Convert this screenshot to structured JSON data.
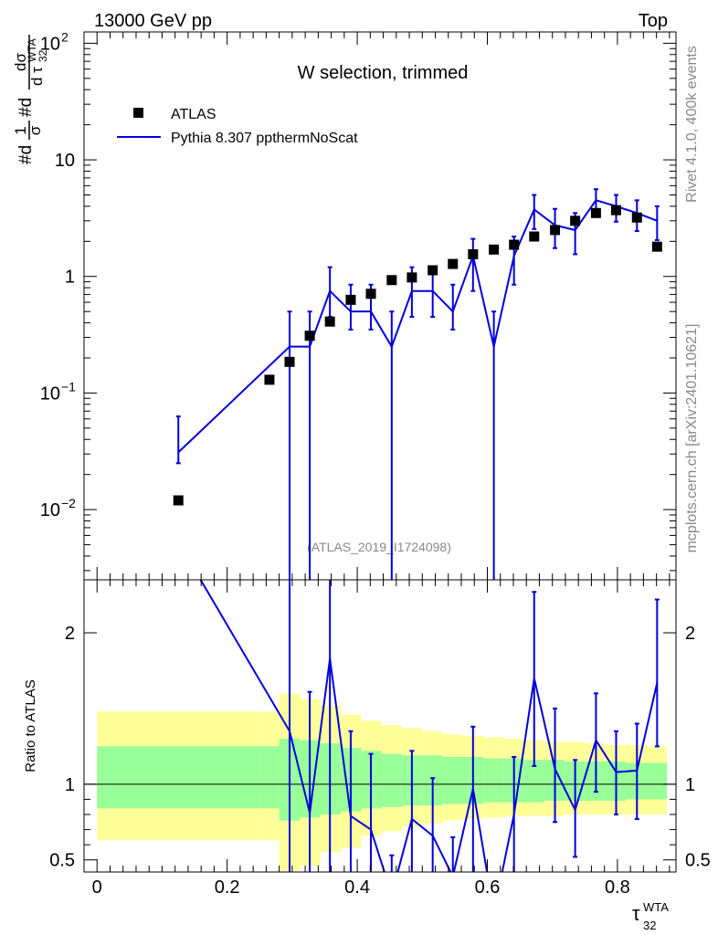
{
  "header": {
    "left": "13000 GeV pp",
    "right": "Top",
    "title": "W selection, trimmed",
    "watermark": "(ATLAS_2019_I1724098)",
    "side_top": "Rivet 4.1.0,  400k events",
    "side_bottom": "mcplots.cern.ch [arXiv:2401.10621]"
  },
  "legend": {
    "data_label": "ATLAS",
    "mc_label": "Pythia 8.307 ppthermNoScat"
  },
  "colors": {
    "data": "#000000",
    "mc": "#0000dd",
    "band_inner": "#99ff99",
    "band_outer": "#ffff99"
  },
  "chart_data": [
    {
      "type": "scatter",
      "title": "W selection, trimmed",
      "xlabel": "τ32 WTA",
      "ylabel": "#d1/σ #dσ/d τ32 WTA",
      "ylabel_parts": {
        "a": "#d",
        "b": "1",
        "c": "σ",
        "d": "#d",
        "e": "dσ",
        "f": "d τ",
        "g": "32",
        "h": "WTA"
      },
      "yscale": "log",
      "xlim": [
        -0.02,
        0.89
      ],
      "ylim": [
        0.0025,
        125
      ],
      "yticks": [
        {
          "v": 100,
          "base": "10",
          "exp": "2"
        },
        {
          "v": 10,
          "base": "10",
          "exp": ""
        },
        {
          "v": 1,
          "base": "1",
          "exp": ""
        },
        {
          "v": 0.1,
          "base": "10",
          "exp": "−1"
        },
        {
          "v": 0.01,
          "base": "10",
          "exp": "−2"
        }
      ],
      "series": [
        {
          "name": "ATLAS",
          "x": [
            0.125,
            0.265,
            0.296,
            0.327,
            0.358,
            0.39,
            0.421,
            0.453,
            0.484,
            0.516,
            0.547,
            0.578,
            0.61,
            0.641,
            0.672,
            0.704,
            0.735,
            0.767,
            0.798,
            0.83,
            0.861
          ],
          "y": [
            0.012,
            0.13,
            0.185,
            0.31,
            0.41,
            0.63,
            0.71,
            0.93,
            0.98,
            1.13,
            1.28,
            1.55,
            1.7,
            1.87,
            2.2,
            2.5,
            3.0,
            3.5,
            3.7,
            3.2,
            1.8
          ]
        },
        {
          "name": "Pythia 8.307 ppthermNoScat",
          "x": [
            0.125,
            0.296,
            0.327,
            0.358,
            0.39,
            0.421,
            0.453,
            0.484,
            0.516,
            0.547,
            0.578,
            0.61,
            0.641,
            0.672,
            0.704,
            0.735,
            0.767,
            0.798,
            0.83,
            0.861
          ],
          "y": [
            0.031,
            0.25,
            0.25,
            0.75,
            0.5,
            0.5,
            0.25,
            0.75,
            0.75,
            0.5,
            1.5,
            0.25,
            1.5,
            3.75,
            2.75,
            2.5,
            4.5,
            4.0,
            3.5,
            3.0
          ],
          "err_lo": [
            0.025,
            0.0025,
            0.0025,
            0.45,
            0.35,
            0.35,
            0.0025,
            0.45,
            0.45,
            0.35,
            0.75,
            0.0025,
            0.85,
            2.55,
            1.75,
            1.55,
            3.35,
            2.95,
            2.45,
            2.05
          ],
          "err_hi": [
            0.063,
            0.5,
            0.5,
            1.2,
            0.85,
            0.85,
            0.5,
            1.2,
            1.2,
            0.85,
            2.1,
            0.5,
            2.2,
            5.0,
            3.8,
            3.5,
            5.6,
            5.0,
            4.5,
            4.0
          ]
        }
      ]
    },
    {
      "type": "line",
      "ylabel": "Ratio to ATLAS",
      "xlabel": "τ32 WTA",
      "xlabel_parts": {
        "main": "τ",
        "sub": "32",
        "sup": "WTA"
      },
      "xlim": [
        -0.02,
        0.89
      ],
      "ylim": [
        0.42,
        2.35
      ],
      "xticks": [
        {
          "v": 0,
          "label": "0"
        },
        {
          "v": 0.2,
          "label": "0.2"
        },
        {
          "v": 0.4,
          "label": "0.4"
        },
        {
          "v": 0.6,
          "label": "0.6"
        },
        {
          "v": 0.8,
          "label": "0.8"
        }
      ],
      "yticks": [
        {
          "v": 2,
          "label": "2"
        },
        {
          "v": 1,
          "label": "1"
        },
        {
          "v": 0.5,
          "label": "0.5"
        }
      ],
      "band_edges": [
        0.0,
        0.25,
        0.28,
        0.312,
        0.343,
        0.375,
        0.406,
        0.437,
        0.469,
        0.5,
        0.531,
        0.562,
        0.594,
        0.625,
        0.656,
        0.687,
        0.719,
        0.75,
        0.781,
        0.812,
        0.845,
        0.876
      ],
      "band_inner_lo": [
        0.84,
        0.84,
        0.76,
        0.78,
        0.8,
        0.82,
        0.84,
        0.85,
        0.86,
        0.86,
        0.87,
        0.87,
        0.88,
        0.88,
        0.88,
        0.89,
        0.89,
        0.89,
        0.89,
        0.9,
        0.9
      ],
      "band_inner_hi": [
        1.25,
        1.25,
        1.3,
        1.29,
        1.27,
        1.24,
        1.22,
        1.2,
        1.19,
        1.19,
        1.18,
        1.18,
        1.17,
        1.17,
        1.16,
        1.16,
        1.15,
        1.15,
        1.15,
        1.14,
        1.14
      ],
      "band_outer_lo": [
        0.63,
        0.63,
        0.43,
        0.46,
        0.55,
        0.58,
        0.66,
        0.69,
        0.72,
        0.74,
        0.76,
        0.77,
        0.78,
        0.79,
        0.79,
        0.79,
        0.8,
        0.8,
        0.8,
        0.8,
        0.8
      ],
      "band_outer_hi": [
        1.48,
        1.48,
        1.6,
        1.56,
        1.52,
        1.46,
        1.42,
        1.39,
        1.37,
        1.35,
        1.33,
        1.32,
        1.31,
        1.3,
        1.29,
        1.28,
        1.28,
        1.27,
        1.26,
        1.26,
        1.25
      ],
      "series": [
        {
          "name": "Pythia 8.307 ppthermNoScat / ATLAS",
          "x": [
            0.125,
            0.296,
            0.327,
            0.358,
            0.39,
            0.421,
            0.453,
            0.484,
            0.516,
            0.547,
            0.578,
            0.61,
            0.641,
            0.672,
            0.704,
            0.735,
            0.767,
            0.798,
            0.83,
            0.861
          ],
          "y": [
            2.6,
            1.35,
            0.81,
            1.83,
            0.79,
            0.7,
            0.27,
            0.77,
            0.66,
            0.39,
            0.97,
            0.15,
            0.8,
            1.7,
            1.1,
            0.83,
            1.29,
            1.08,
            1.09,
            1.67
          ],
          "err_lo": [
            null,
            0.0,
            0.0,
            0.3,
            0.0,
            0.3,
            0.0,
            0.3,
            0.25,
            0.0,
            0.28,
            0.0,
            0.3,
            1.12,
            0.75,
            0.52,
            0.95,
            0.8,
            0.77,
            1.25
          ],
          "err_hi": [
            null,
            2.7,
            1.61,
            3.0,
            1.35,
            1.2,
            0.53,
            1.22,
            1.04,
            0.65,
            1.38,
            0.3,
            1.18,
            2.27,
            1.5,
            1.16,
            1.6,
            1.35,
            1.4,
            2.22
          ]
        }
      ]
    }
  ]
}
